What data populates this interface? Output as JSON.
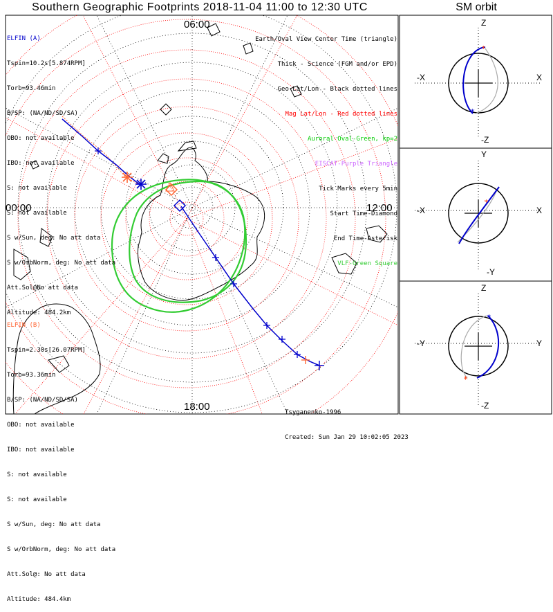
{
  "header": {
    "title": "Southern Geographic Footprints 2018-11-04 11:00 to 12:30 UTC",
    "sm_title": "SM orbit"
  },
  "map": {
    "time_labels": {
      "top": "06:00",
      "bottom": "18:00",
      "left": "00:00",
      "right": "12:00"
    }
  },
  "sat_a": {
    "name": "ELFIN (A)",
    "color": "#0000cc",
    "lines": [
      "Tspin=10.2s[5.874RPM]",
      "Torb=93.46min",
      "B/SP: (NA/ND/SD/SA)",
      "OBO: not available",
      "IBO: not available",
      "S: not available",
      "S: not available",
      "S w/Sun, deg: No att data",
      "S w/OrbNorm, deg: No att data",
      "Att.Sol@No att data",
      "Altitude: 484.2km"
    ]
  },
  "sat_b": {
    "name": "ELFIN (B)",
    "color": "#ff6633",
    "lines": [
      "Tspin=2.30s[26.07RPM]",
      "Torb=93.36min",
      "B/SP: (NA/ND/SD/SA)",
      "OBO: not available",
      "IBO: not available",
      "S: not available",
      "S: not available",
      "S w/Sun, deg: No att data",
      "S w/OrbNorm, deg: No att data",
      "Att.Sol@: No att data",
      "Altitude: 484.4km"
    ]
  },
  "legend": [
    {
      "text": "Earth/Oval View Center Time (triangle)",
      "color": "#000000"
    },
    {
      "text": "Thick - Science (FGM and/or EPD)",
      "color": "#000000"
    },
    {
      "text": "Geo Lat/Lon - Black dotted lines",
      "color": "#000000"
    },
    {
      "text": "Mag Lat/Lon - Red dotted lines",
      "color": "#ff0000"
    },
    {
      "text": "Auroral Oval-Green, kp=2",
      "color": "#00cc00"
    },
    {
      "text": "EISCAT-Purple Triangle",
      "color": "#cc66ff"
    },
    {
      "text": "Tick Marks every 5min",
      "color": "#000000"
    },
    {
      "text": "Start Time-Diamond",
      "color": "#000000"
    },
    {
      "text": "End Time-Asterisk",
      "color": "#000000"
    },
    {
      "text": "VLF-Green Square",
      "color": "#33cc33"
    }
  ],
  "footer": {
    "model": "Tsyganenko-1996",
    "created": "Created: Sun Jan 29 10:02:05 2023"
  },
  "sm_panels": [
    {
      "top_label": "Z",
      "bottom_label": "-Z",
      "left_label": "-X",
      "right_label": "X"
    },
    {
      "top_label": "Y",
      "bottom_label": "-Y",
      "left_label": "-X",
      "right_label": "X"
    },
    {
      "top_label": "Z",
      "bottom_label": "-Z",
      "left_label": "-Y",
      "right_label": "Y"
    }
  ],
  "chart_data": {
    "type": "polar-map",
    "title": "Southern Geographic Footprints 2018-11-04 11:00 to 12:30 UTC",
    "projection": "south polar stereographic, local time around",
    "local_time_ticks": [
      "00:00",
      "06:00",
      "12:00",
      "18:00"
    ],
    "latitude_ring_step_deg": 10,
    "auroral_oval_kp": 2,
    "time_range_utc": [
      "11:00",
      "12:30"
    ],
    "tick_interval_min": 5,
    "series": [
      {
        "name": "ELFIN (A)",
        "altitude_km": 484.2,
        "period_min": 93.46
      },
      {
        "name": "ELFIN (B)",
        "altitude_km": 484.4,
        "period_min": 93.36
      }
    ]
  }
}
